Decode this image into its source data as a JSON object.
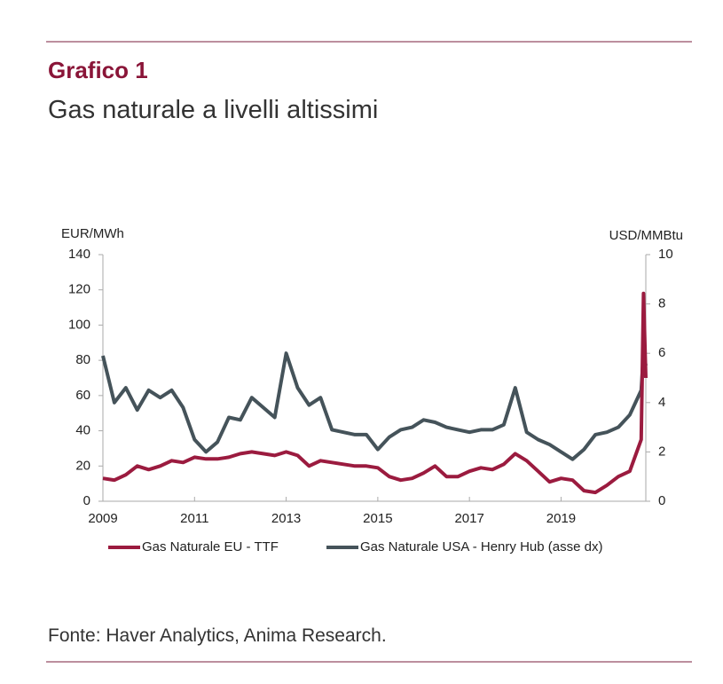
{
  "header": {
    "title": "Grafico 1",
    "subtitle": "Gas naturale a livelli altissimi"
  },
  "chart_data": {
    "type": "line",
    "ylabel": "EUR/MWh",
    "y2label": "USD/MMBtu",
    "x": [
      2009,
      2009.25,
      2009.5,
      2009.75,
      2010,
      2010.25,
      2010.5,
      2010.75,
      2011,
      2011.25,
      2011.5,
      2011.75,
      2012,
      2012.25,
      2012.5,
      2012.75,
      2013,
      2013.25,
      2013.5,
      2013.75,
      2014,
      2014.25,
      2014.5,
      2014.75,
      2015,
      2015.25,
      2015.5,
      2015.75,
      2016,
      2016.25,
      2016.5,
      2016.75,
      2017,
      2017.25,
      2017.5,
      2017.75,
      2018,
      2018.25,
      2018.5,
      2018.75,
      2019,
      2019.25,
      2019.5,
      2019.75,
      2020,
      2020.25,
      2020.5,
      2020.75,
      2020.8,
      2020.85
    ],
    "series": [
      {
        "name": "Gas Naturale EU  - TTF",
        "color": "#9b1b3f",
        "axis": "y",
        "values": [
          13,
          12,
          15,
          20,
          18,
          20,
          23,
          22,
          25,
          24,
          24,
          25,
          27,
          28,
          27,
          26,
          28,
          26,
          20,
          23,
          22,
          21,
          20,
          20,
          19,
          14,
          12,
          13,
          16,
          20,
          14,
          14,
          17,
          19,
          18,
          21,
          27,
          23,
          17,
          11,
          13,
          12,
          6,
          5,
          9,
          14,
          17,
          35,
          118,
          70
        ]
      },
      {
        "name": "Gas Naturale USA - Henry Hub (asse dx)",
        "color": "#45535a",
        "axis": "y2",
        "values": [
          5.9,
          4.0,
          4.6,
          3.7,
          4.5,
          4.2,
          4.5,
          3.8,
          2.5,
          2.0,
          2.4,
          3.4,
          3.3,
          4.2,
          3.8,
          3.4,
          6.0,
          4.6,
          3.9,
          4.2,
          2.9,
          2.8,
          2.7,
          2.7,
          2.1,
          2.6,
          2.9,
          3.0,
          3.3,
          3.2,
          3.0,
          2.9,
          2.8,
          2.9,
          2.9,
          3.1,
          4.6,
          2.8,
          2.5,
          2.3,
          2.0,
          1.7,
          2.1,
          2.7,
          2.8,
          3.0,
          3.5,
          4.5,
          6.0,
          5.5
        ]
      }
    ],
    "xlim": [
      2009,
      2020.85
    ],
    "xticks": [
      2009,
      2011,
      2013,
      2015,
      2017,
      2019
    ],
    "ylim": [
      0,
      140
    ],
    "yticks": [
      0,
      20,
      40,
      60,
      80,
      100,
      120,
      140
    ],
    "y2lim": [
      0,
      10
    ],
    "y2ticks": [
      0,
      2,
      4,
      6,
      8,
      10
    ],
    "grid": false,
    "legend": "bottom"
  },
  "footer": {
    "source": "Fonte: Haver Analytics, Anima Research."
  }
}
